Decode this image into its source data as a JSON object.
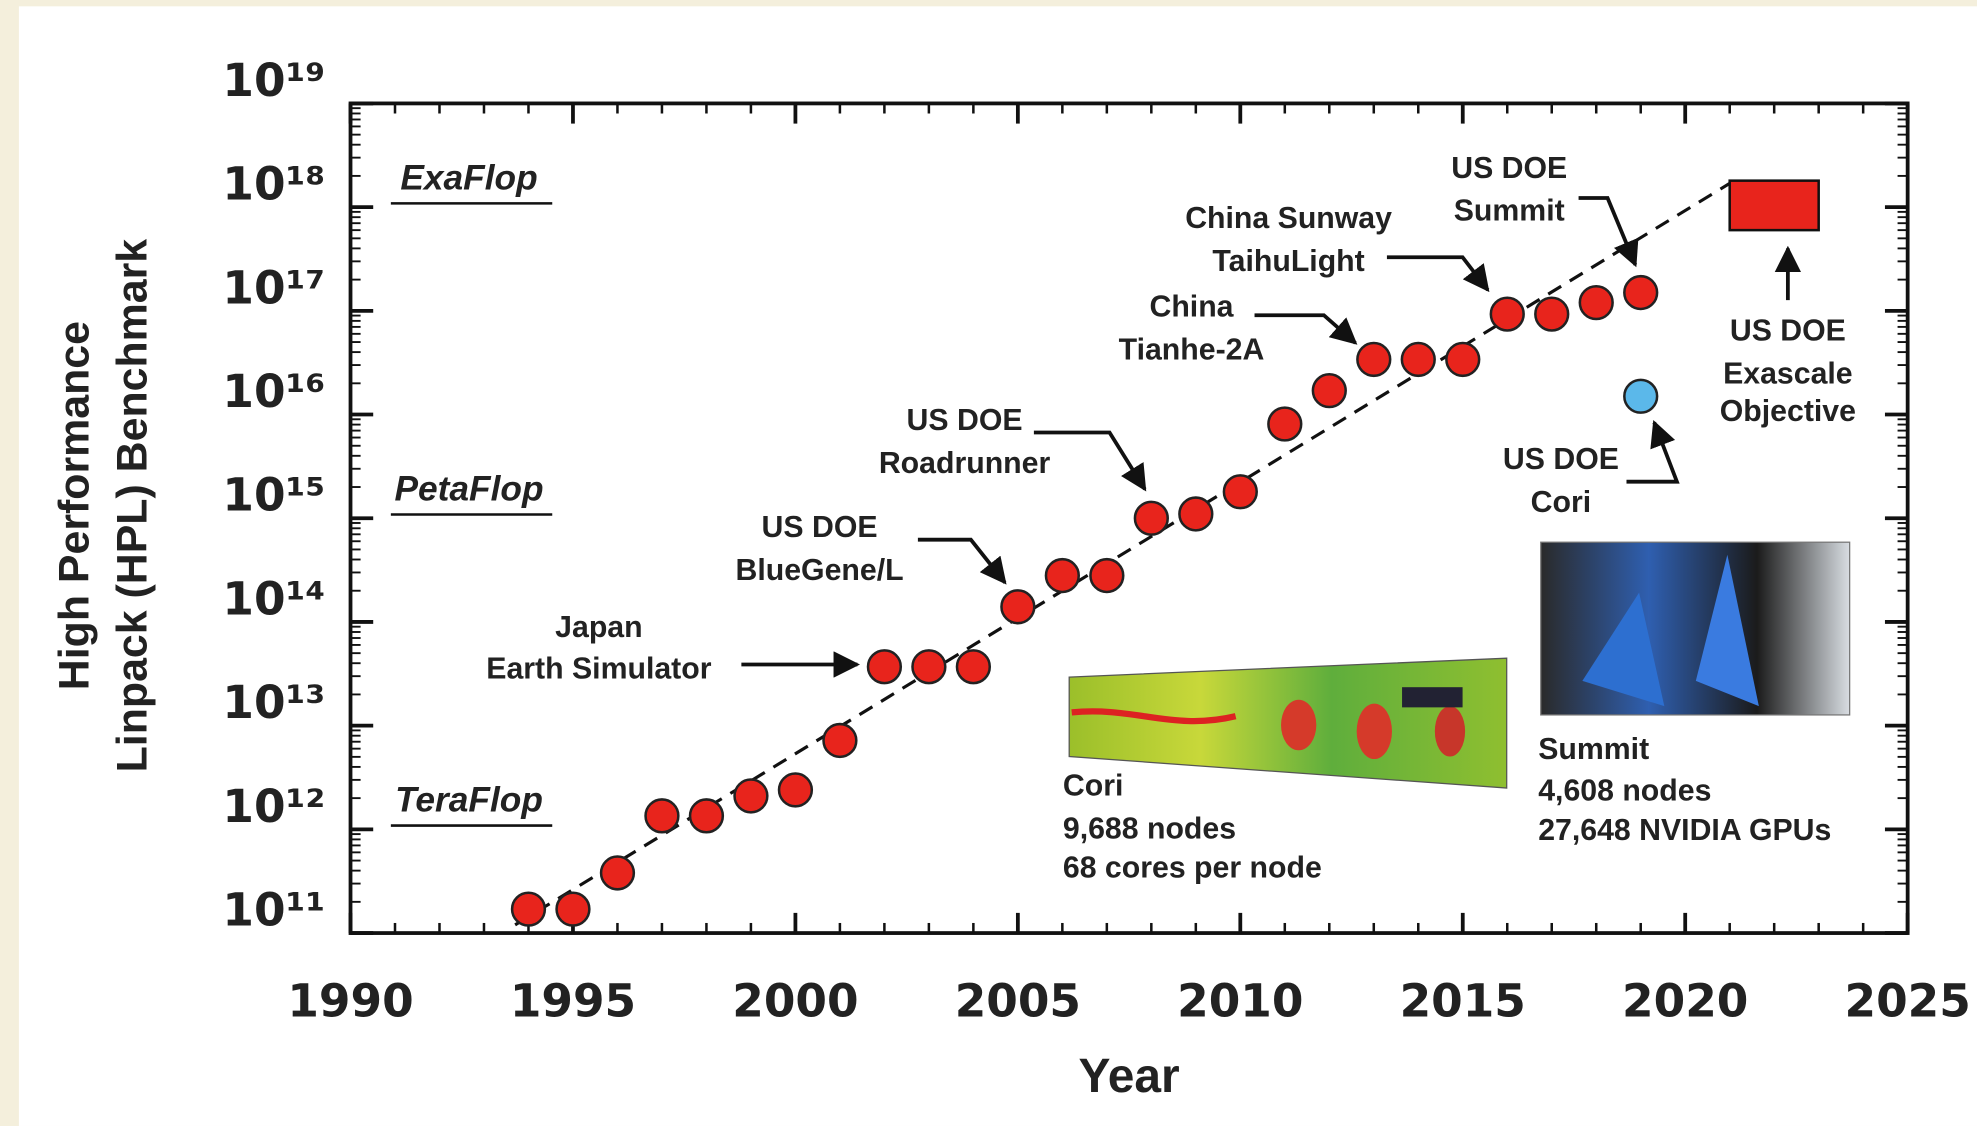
{
  "chart_data": {
    "type": "scatter",
    "xlabel": "Year",
    "ylabel": [
      "High Performance",
      "Linpack (HPL) Benchmark"
    ],
    "xlim": [
      1990,
      2025
    ],
    "xticks": [
      1990,
      1995,
      2000,
      2005,
      2010,
      2015,
      2020,
      2025
    ],
    "ylim": [
      100000000000.0,
      1e+19
    ],
    "log_y": true,
    "yticks": [
      {
        "value": 100000000000.0,
        "label": "10¹¹"
      },
      {
        "value": 1000000000000.0,
        "label": "10¹²"
      },
      {
        "value": 10000000000000.0,
        "label": "10¹³"
      },
      {
        "value": 100000000000000.0,
        "label": "10¹⁴"
      },
      {
        "value": 1000000000000000.0,
        "label": "10¹⁵"
      },
      {
        "value": 1e+16,
        "label": "10¹⁶"
      },
      {
        "value": 1e+17,
        "label": "10¹⁷"
      },
      {
        "value": 1e+18,
        "label": "10¹⁸"
      },
      {
        "value": 1e+19,
        "label": "10¹⁹"
      }
    ],
    "series": [
      {
        "color": "#e8241c",
        "x": [
          1994,
          1995,
          1996,
          1997,
          1998,
          1999,
          2000,
          2001,
          2002,
          2003,
          2004,
          2005,
          2006,
          2007,
          2008,
          2009,
          2010,
          2011,
          2012,
          2013,
          2014,
          2015,
          2016,
          2017,
          2018,
          2019
        ],
        "values": [
          170000000000.0,
          170000000000.0,
          380000000000.0,
          1350000000000.0,
          1350000000000.0,
          2100000000000.0,
          2400000000000.0,
          7200000000000.0,
          37000000000000.0,
          37000000000000.0,
          37000000000000.0,
          140000000000000.0,
          280000000000000.0,
          280000000000000.0,
          1000000000000000.0,
          1100000000000000.0,
          1800000000000000.0,
          8100000000000000.0,
          1.7e+16,
          3.4e+16,
          3.4e+16,
          3.4e+16,
          9.3e+16,
          9.3e+16,
          1.2e+17,
          1.5e+17
        ]
      },
      {
        "color": "#5bb8ea",
        "x": [
          2019
        ],
        "values": [
          1.5e+16
        ]
      }
    ],
    "trend": {
      "color": "#111111",
      "x": [
        1993.7,
        2021.1
      ],
      "values": [
        120000000000.0,
        1.8e+18
      ]
    },
    "target": {
      "color": "#e8241c",
      "x": [
        2021,
        2023
      ],
      "values": [
        6e+17,
        1.8e+18
      ]
    },
    "levels": [
      {
        "label": "ExaFlop",
        "value": 1e+18
      },
      {
        "label": "PetaFlop",
        "value": 1000000000000000.0
      },
      {
        "label": "TeraFlop",
        "value": 1000000000000.0
      }
    ],
    "annotations": [
      {
        "lines": [
          "Japan",
          "Earth Simulator"
        ]
      },
      {
        "lines": [
          "US DOE",
          "BlueGene/L"
        ]
      },
      {
        "lines": [
          "US DOE",
          "Roadrunner"
        ]
      },
      {
        "lines": [
          "China",
          "Tianhe-2A"
        ]
      },
      {
        "lines": [
          "China Sunway",
          "TaihuLight"
        ]
      },
      {
        "lines": [
          "US DOE",
          "Summit"
        ]
      },
      {
        "lines": [
          "US DOE",
          "Exascale",
          "Objective"
        ]
      },
      {
        "lines": [
          "US DOE",
          "Cori"
        ]
      }
    ],
    "captions": [
      {
        "lines": [
          "Cori",
          "9,688 nodes",
          "68 cores per node"
        ]
      },
      {
        "lines": [
          "Summit",
          "4,608 nodes",
          "27,648 NVIDIA GPUs"
        ]
      }
    ]
  }
}
